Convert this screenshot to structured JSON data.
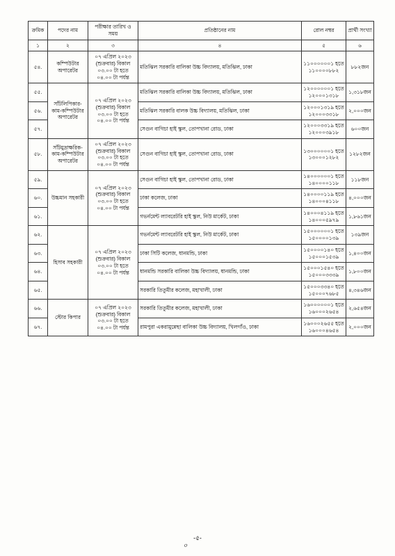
{
  "headers": {
    "c1": "ক্রমিক",
    "c2": "পদের নাম",
    "c3": "পরীক্ষার তারিখ ও সময়",
    "c4": "প্রতিষ্ঠানের নাম",
    "c5": "রোল নম্বর",
    "c6": "প্রার্থী সংখ্যা"
  },
  "sub": {
    "c1": "১",
    "c2": "২",
    "c3": "৩",
    "c4": "৪",
    "c5": "৫",
    "c6": "৬"
  },
  "rows": [
    {
      "sn": "৫৪.",
      "post": "কম্পিউটার অপারেটর",
      "dt": "০৭ এপ্রিল ২০২৩ (শুক্রবার) বিকাল ০৩.০০ টা হতে ০৪.০০ টা পর্যন্ত",
      "inst": "মতিঝিল সরকারি বালিকা উচ্চ বিদ্যালয়, মতিঝিল, ঢাকা",
      "roll": "১১০০০০০০১ হতে ১১০০০০৮৮২",
      "cnt": "৮৮২জন"
    },
    {
      "sn": "৫৫.",
      "post": "সাঁটলিপিকার-কাম-কম্পিউটার অপারেটর",
      "dt": "০৭ এপ্রিল ২০২৩ (শুক্রবার) বিকাল ০৩.০০ টা হতে ০৪.০০ টা পর্যন্ত",
      "inst": "মতিঝিল সরকারি বালিকা উচ্চ বিদ্যালয়, মতিঝিল, ঢাকা",
      "roll": "১২০০০০০০১ হতে ১২০০০১৩১৮",
      "cnt": "১,৩১৮জন"
    },
    {
      "sn": "৫৬.",
      "inst": "মতিঝিল সরকারি বালক উচ্চ বিদ্যালয়, মতিঝিল, ঢাকা",
      "roll": "১২০০০১৩১৯ হতে ১২০০০৩৩১৮",
      "cnt": "২,০০০জন"
    },
    {
      "sn": "৫৭.",
      "inst": "সেগুন বাগিচা হাই স্কুল, তোপখানা রোড, ঢাকা",
      "roll": "১২০০০৩৩১৯ হতে ১২০০০৩৯১৮",
      "cnt": "৬০০জন"
    },
    {
      "sn": "৫৮.",
      "post": "সাঁটমুদ্রাক্ষরিক-কাম-কম্পিউটার অপারেটর",
      "dt": "০৭ এপ্রিল ২০২৩ (শুক্রবার) বিকাল ০৩.০০ টা হতে ০৪.০০ টা পর্যন্ত",
      "inst": "সেগুন বাগিচা হাই স্কুল, তোপখানা রোড, ঢাকা",
      "roll": "১৩০০০০০০১ হতে ১৩০০০১২৮২",
      "cnt": "১২৮২জন"
    },
    {
      "sn": "৫৯.",
      "post": "উচ্চমান সহকারী",
      "dt": "০৭ এপ্রিল ২০২৩ (শুক্রবার) বিকাল ০৩.০০ টা হতে ০৪.০০ টা পর্যন্ত",
      "inst": "সেগুন বাগিচা হাই স্কুল, তোপখানা রোড, ঢাকা",
      "roll": "১৪০০০০০০১ হতে ১৪০০০০১১৮",
      "cnt": "১১৮জন"
    },
    {
      "sn": "৬০.",
      "inst": "ঢাকা কলেজ, ঢাকা",
      "roll": "১৪০০০০১১৯ হতে ১৪০০০৪১১৮",
      "cnt": "৪,০০০জন"
    },
    {
      "sn": "৬১.",
      "inst": "গভর্নমেন্ট ল্যাবরেটরি হাই স্কুল, নিউ মার্কেট, ঢাকা",
      "roll": "১৪০০০৪১১৯ হতে ১৪০০০৫৯৭৯",
      "cnt": "১,৮৬১জন"
    },
    {
      "sn": "৬২.",
      "post": "হিসাব সহকারী",
      "dt": "০৭ এপ্রিল ২০২৩ (শুক্রবার) বিকাল ০৩.০০ টা হতে ০৪.০০ টা পর্যন্ত",
      "inst": "গভর্নমেন্ট ল্যাবরেটরি হাই স্কুল, নিউ মার্কেট, ঢাকা",
      "roll": "১৫০০০০০০১ হতে ১৫০০০০১৩৯",
      "cnt": "১৩৯জন"
    },
    {
      "sn": "৬৩.",
      "inst": "ঢাকা সিটি কলেজ, ধানমন্ডি, ঢাকা",
      "roll": "১৫০০০০১৪০ হতে ১৫০০০১৫৩৯",
      "cnt": "১,৪০০জন"
    },
    {
      "sn": "৬৪.",
      "inst": "ধানমন্ডি সরকারি বালিকা উচ্চ বিদ্যালয়, ধানমন্ডি, ঢাকা",
      "roll": "১৫০০০১৫৪০ হতে ১৫০০০৩৩৩৯",
      "cnt": "১,৮০০জন"
    },
    {
      "sn": "৬৫.",
      "inst": "সরকারি তিতুমীর কলেজ, মহাখালী, ঢাকা",
      "roll": "১৫০০০৩৩৪০ হতে ১৫০০০৭৬৮৫",
      "cnt": "৪,৩৪৬জন"
    },
    {
      "sn": "৬৬.",
      "post": "স্টোর কিপার",
      "dt": "০৭ এপ্রিল ২০২৩ (শুক্রবার) বিকাল ০৩.০০ টা হতে ০৪.০০ টা পর্যন্ত",
      "inst": "সরকারি তিতুমীর কলেজ, মহাখালী, ঢাকা",
      "roll": "১৬০০০০০০১ হতে ১৬০০০২৬৫৪",
      "cnt": "২,৬৫৪জন"
    },
    {
      "sn": "৬৭.",
      "inst": "রামপুরা একরামুন্নেছা বালিকা উচ্চ বিদ্যালয়, খিলগাঁও, ঢাকা",
      "roll": "১৬০০০২৬৫৫ হতে ১৬০০০৪৬৫৪",
      "cnt": "২,০০০জন"
    }
  ],
  "pageNumber": "-৫-",
  "signature": "৹"
}
